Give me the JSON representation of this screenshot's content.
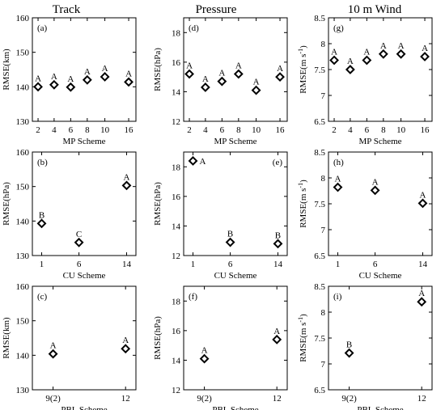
{
  "columns": [
    "Track",
    "Pressure",
    "10 m Wind"
  ],
  "chart_data": [
    {
      "id": "a",
      "type": "scatter",
      "panel_label": "(a)",
      "ylabel": "RMSE(km)",
      "xlabel": "MP Scheme",
      "categories": [
        "2",
        "4",
        "6",
        "8",
        "10",
        "16"
      ],
      "values": [
        140.0,
        140.6,
        139.9,
        142.0,
        142.9,
        141.4
      ],
      "groups": [
        "A",
        "A",
        "A",
        "A",
        "A",
        "A"
      ],
      "ylim": [
        130,
        160
      ],
      "yticks": [
        "130",
        "140",
        "150",
        "160"
      ]
    },
    {
      "id": "d",
      "type": "scatter",
      "panel_label": "(d)",
      "ylabel": "RMSE(hPa)",
      "xlabel": "MP Scheme",
      "categories": [
        "2",
        "4",
        "6",
        "8",
        "10",
        "16"
      ],
      "values": [
        15.2,
        14.3,
        14.7,
        15.2,
        14.1,
        15.0
      ],
      "groups": [
        "A",
        "A",
        "A",
        "A",
        "A",
        "A"
      ],
      "ylim": [
        12,
        19
      ],
      "yticks": [
        "12",
        "14",
        "16",
        "18"
      ]
    },
    {
      "id": "g",
      "type": "scatter",
      "panel_label": "(g)",
      "ylabel": "RMSE(m s",
      "ylabel_sup": "-1",
      "ylabel_end": ")",
      "xlabel": "MP Scheme",
      "categories": [
        "2",
        "4",
        "6",
        "8",
        "10",
        "16"
      ],
      "values": [
        7.68,
        7.5,
        7.68,
        7.8,
        7.8,
        7.75
      ],
      "groups": [
        "A",
        "A",
        "A",
        "A",
        "A",
        "A"
      ],
      "ylim": [
        6.5,
        8.5
      ],
      "yticks": [
        "6.5",
        "7",
        "7.5",
        "8",
        "8.5"
      ]
    },
    {
      "id": "b",
      "type": "scatter",
      "panel_label": "(b)",
      "ylabel": "RMSE(hPa)",
      "xlabel": "CU Scheme",
      "categories": [
        "1",
        "6",
        "14"
      ],
      "values": [
        139.3,
        133.8,
        150.3
      ],
      "groups": [
        "B",
        "C",
        "A"
      ],
      "ylim": [
        130,
        160
      ],
      "yticks": [
        "130",
        "140",
        "150",
        "160"
      ]
    },
    {
      "id": "e",
      "type": "scatter",
      "panel_label": "(e)",
      "ylabel": "RMSE(hPa)",
      "xlabel": "CU Scheme",
      "categories": [
        "1",
        "6",
        "14"
      ],
      "values": [
        18.4,
        12.9,
        12.8
      ],
      "groups": [
        "A",
        "B",
        "B"
      ],
      "ylim": [
        12,
        19
      ],
      "yticks": [
        "12",
        "14",
        "16",
        "18"
      ]
    },
    {
      "id": "h",
      "type": "scatter",
      "panel_label": "(h)",
      "ylabel": "RMSE(m s",
      "ylabel_sup": "-1",
      "ylabel_end": ")",
      "xlabel": "CU Scheme",
      "categories": [
        "1",
        "6",
        "14"
      ],
      "values": [
        7.82,
        7.76,
        7.51
      ],
      "groups": [
        "A",
        "A",
        "A"
      ],
      "ylim": [
        6.5,
        8.5
      ],
      "yticks": [
        "6.5",
        "7",
        "7.5",
        "8",
        "8.5"
      ]
    },
    {
      "id": "c",
      "type": "scatter",
      "panel_label": "(c)",
      "ylabel": "RMSE(km)",
      "xlabel": "PBL Scheme",
      "categories": [
        "9(2)",
        "12"
      ],
      "values": [
        140.4,
        141.9
      ],
      "groups": [
        "A",
        "A"
      ],
      "ylim": [
        130,
        160
      ],
      "yticks": [
        "130",
        "140",
        "150",
        "160"
      ]
    },
    {
      "id": "f",
      "type": "scatter",
      "panel_label": "(f)",
      "ylabel": "RMSE(hPa)",
      "xlabel": "PBL Scheme",
      "categories": [
        "9(2)",
        "12"
      ],
      "values": [
        14.1,
        15.4
      ],
      "groups": [
        "A",
        "A"
      ],
      "ylim": [
        12,
        19
      ],
      "yticks": [
        "12",
        "14",
        "16",
        "18"
      ]
    },
    {
      "id": "i",
      "type": "scatter",
      "panel_label": "(i)",
      "ylabel": "RMSE(m s",
      "ylabel_sup": "-1",
      "ylabel_end": ")",
      "xlabel": "PBL Scheme",
      "categories": [
        "9(2)",
        "12"
      ],
      "values": [
        7.21,
        8.2
      ],
      "groups": [
        "B",
        "A"
      ],
      "ylim": [
        6.5,
        8.5
      ],
      "yticks": [
        "6.5",
        "7",
        "7.5",
        "8",
        "8.5"
      ]
    }
  ]
}
